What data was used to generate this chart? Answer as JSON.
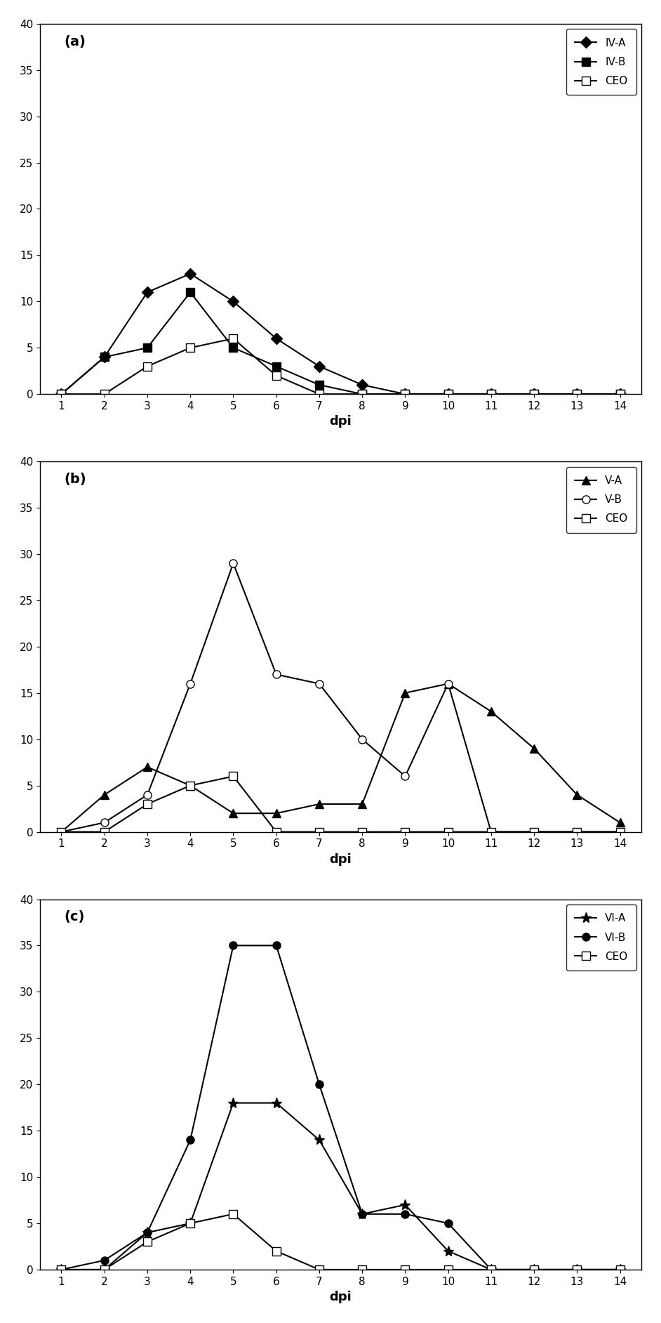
{
  "days": [
    1,
    2,
    3,
    4,
    5,
    6,
    7,
    8,
    9,
    10,
    11,
    12,
    13,
    14
  ],
  "panel_a": {
    "label": "(a)",
    "ylim": [
      0,
      40
    ],
    "yticks": [
      0,
      5,
      10,
      15,
      20,
      25,
      30,
      35,
      40
    ],
    "series": {
      "IV-A": [
        0,
        4,
        11,
        13,
        10,
        6,
        3,
        1,
        0,
        0,
        0,
        0,
        0,
        0
      ],
      "IV-B": [
        0,
        4,
        5,
        11,
        5,
        3,
        1,
        0,
        0,
        0,
        0,
        0,
        0,
        0
      ],
      "CEO": [
        0,
        0,
        3,
        5,
        6,
        2,
        0,
        0,
        0,
        0,
        0,
        0,
        0,
        0
      ]
    },
    "markers": {
      "IV-A": "D",
      "IV-B": "s",
      "CEO": "s"
    },
    "markerfacecolors": {
      "IV-A": "black",
      "IV-B": "black",
      "CEO": "white"
    },
    "legend_markers": {
      "IV-A": "D",
      "IV-B": "s",
      "CEO": "s"
    }
  },
  "panel_b": {
    "label": "(b)",
    "ylim": [
      0,
      40
    ],
    "yticks": [
      0,
      5,
      10,
      15,
      20,
      25,
      30,
      35,
      40
    ],
    "series": {
      "V-A": [
        0,
        4,
        7,
        5,
        2,
        2,
        3,
        3,
        15,
        16,
        13,
        9,
        4,
        1
      ],
      "V-B": [
        0,
        1,
        4,
        16,
        29,
        17,
        16,
        10,
        6,
        16,
        0,
        0,
        0,
        0
      ],
      "CEO": [
        0,
        0,
        3,
        5,
        6,
        0,
        0,
        0,
        0,
        0,
        0,
        0,
        0,
        0
      ]
    },
    "markers": {
      "V-A": "^",
      "V-B": "o",
      "CEO": "s"
    },
    "markerfacecolors": {
      "V-A": "black",
      "V-B": "white",
      "CEO": "white"
    },
    "legend_markers": {
      "V-A": "^",
      "V-B": "o",
      "CEO": "s"
    }
  },
  "panel_c": {
    "label": "(c)",
    "ylim": [
      0,
      40
    ],
    "yticks": [
      0,
      5,
      10,
      15,
      20,
      25,
      30,
      35,
      40
    ],
    "series": {
      "VI-A": [
        0,
        0,
        4,
        5,
        18,
        18,
        14,
        6,
        7,
        2,
        0,
        0,
        0,
        0
      ],
      "VI-B": [
        0,
        1,
        4,
        14,
        35,
        35,
        20,
        6,
        6,
        5,
        0,
        0,
        0,
        0
      ],
      "CEO": [
        0,
        0,
        3,
        5,
        6,
        2,
        0,
        0,
        0,
        0,
        0,
        0,
        0,
        0
      ]
    },
    "markers": {
      "VI-A": "*",
      "VI-B": "o",
      "CEO": "s"
    },
    "markerfacecolors": {
      "VI-A": "black",
      "VI-B": "black",
      "CEO": "white"
    },
    "legend_markers": {
      "VI-A": "*",
      "VI-B": "o",
      "CEO": "s"
    }
  },
  "color": "black",
  "linewidth": 1.5,
  "markersize": 8,
  "xlabel": "dpi",
  "figsize": [
    9.42,
    18.84
  ],
  "dpi": 100
}
